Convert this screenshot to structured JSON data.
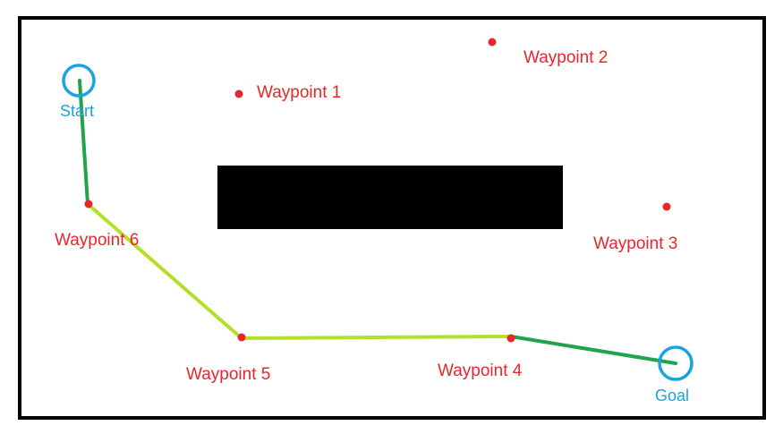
{
  "colors": {
    "border": "#000000",
    "obstacle": "#000000",
    "waypoint": "#e8262b",
    "endpoint": "#1aa3e0",
    "path_dark": "#22a24a",
    "path_light": "#b5e02a"
  },
  "start": {
    "label": "Start"
  },
  "goal": {
    "label": "Goal"
  },
  "waypoints": [
    {
      "id": "1",
      "label": "Waypoint 1"
    },
    {
      "id": "2",
      "label": "Waypoint 2"
    },
    {
      "id": "3",
      "label": "Waypoint 3"
    },
    {
      "id": "4",
      "label": "Waypoint 4"
    },
    {
      "id": "5",
      "label": "Waypoint 5"
    },
    {
      "id": "6",
      "label": "Waypoint 6"
    }
  ],
  "path": [
    "Start",
    "Waypoint 6",
    "Waypoint 5",
    "Waypoint 4",
    "Goal"
  ]
}
